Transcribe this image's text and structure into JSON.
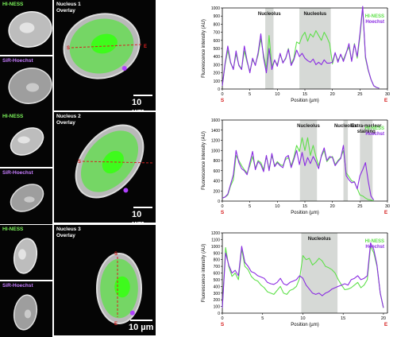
{
  "rows": [
    {
      "label_green": "HI-NESS",
      "label_purple": "SiR-Hoechst",
      "overlay_label": "Nucleus 1\nOverlay",
      "scale_label": "10 µm",
      "line_start": "S",
      "line_end": "E"
    },
    {
      "label_green": "HI-NESS",
      "label_purple": "SiR-Hoechst",
      "overlay_label": "Nucleus 2\nOverlay",
      "scale_label": "10 µm",
      "line_start": "S",
      "line_end": "E"
    },
    {
      "label_green": "HI-NESS",
      "label_purple": "SiR-Hoechst",
      "overlay_label": "Nucleus 3\nOverlay",
      "scale_label": "10 µm",
      "line_start": "S",
      "line_end": "E"
    }
  ],
  "colors": {
    "green": "#5fe04a",
    "purple": "#8a2be2",
    "shade": "#c8ccc8",
    "red": "#d62020"
  },
  "chart_data": [
    {
      "type": "line",
      "xlabel": "Position (µm)",
      "ylabel": "Fluorescence intensity (AU)",
      "xlim": [
        0,
        30
      ],
      "ylim": [
        0,
        1000
      ],
      "xticks": [
        0,
        5,
        10,
        15,
        20,
        25,
        30
      ],
      "yticks": [
        0,
        100,
        200,
        300,
        400,
        500,
        600,
        700,
        800,
        900,
        1000
      ],
      "start_label": "S",
      "end_label": "E",
      "shaded": [
        {
          "from": 7.8,
          "to": 9.3,
          "label": "Nucleolus"
        },
        {
          "from": 14.0,
          "to": 19.7,
          "label": "Nucleolus"
        }
      ],
      "series": [
        {
          "name": "HI-NESS",
          "color": "#5fe04a",
          "x": [
            0,
            0.5,
            1,
            1.5,
            2,
            2.5,
            3,
            3.5,
            4,
            4.5,
            5,
            5.5,
            6,
            6.5,
            7,
            7.5,
            8,
            8.5,
            9,
            9.5,
            10,
            10.5,
            11,
            11.5,
            12,
            12.5,
            13,
            13.5,
            14,
            14.5,
            15,
            15.5,
            16,
            16.5,
            17,
            17.5,
            18,
            18.5,
            19,
            19.5,
            20,
            20.5,
            21,
            21.5,
            22,
            22.5,
            23,
            23.5,
            24,
            24.5,
            25,
            25.5,
            26,
            26.5,
            27,
            27.5,
            28,
            28.5
          ],
          "y": [
            40,
            300,
            480,
            320,
            250,
            430,
            300,
            250,
            470,
            330,
            220,
            360,
            300,
            420,
            620,
            420,
            250,
            660,
            280,
            350,
            300,
            430,
            330,
            370,
            500,
            310,
            380,
            580,
            560,
            650,
            700,
            590,
            680,
            640,
            720,
            660,
            600,
            700,
            640,
            560,
            310,
            440,
            350,
            420,
            360,
            450,
            520,
            350,
            560,
            380,
            640,
            1000,
            380,
            230,
            120,
            40,
            20,
            10
          ]
        },
        {
          "name": "Hoechst",
          "color": "#8a2be2",
          "x": [
            0,
            0.5,
            1,
            1.5,
            2,
            2.5,
            3,
            3.5,
            4,
            4.5,
            5,
            5.5,
            6,
            6.5,
            7,
            7.5,
            8,
            8.5,
            9,
            9.5,
            10,
            10.5,
            11,
            11.5,
            12,
            12.5,
            13,
            13.5,
            14,
            14.5,
            15,
            15.5,
            16,
            16.5,
            17,
            17.5,
            18,
            18.5,
            19,
            19.5,
            20,
            20.5,
            21,
            21.5,
            22,
            22.5,
            23,
            23.5,
            24,
            24.5,
            25,
            25.5,
            26,
            26.5,
            27,
            27.5,
            28,
            28.5
          ],
          "y": [
            40,
            320,
            530,
            330,
            240,
            470,
            290,
            240,
            530,
            350,
            200,
            380,
            290,
            450,
            680,
            380,
            200,
            500,
            240,
            360,
            280,
            440,
            320,
            380,
            490,
            290,
            360,
            480,
            400,
            440,
            380,
            350,
            330,
            370,
            300,
            330,
            300,
            360,
            320,
            320,
            330,
            450,
            330,
            430,
            340,
            440,
            560,
            340,
            550,
            400,
            680,
            1020,
            400,
            240,
            120,
            40,
            20,
            10
          ]
        }
      ]
    },
    {
      "type": "line",
      "xlabel": "Position (µm)",
      "ylabel": "Fluorescence intensity (AU)",
      "xlim": [
        0,
        30
      ],
      "ylim": [
        0,
        1600
      ],
      "xticks": [
        0,
        5,
        10,
        15,
        20,
        25,
        30
      ],
      "yticks": [
        0,
        200,
        400,
        600,
        800,
        1000,
        1200,
        1400,
        1600
      ],
      "start_label": "S",
      "end_label": "E",
      "shaded": [
        {
          "from": 14.1,
          "to": 17.2,
          "label": "Nucleolus"
        },
        {
          "from": 22.0,
          "to": 22.8,
          "label": "Nucleolus"
        },
        {
          "from": 25.0,
          "to": 27.3,
          "label": "Extra-nuclear\nstaining"
        }
      ],
      "series": [
        {
          "name": "HI-NESS",
          "color": "#5fe04a",
          "x": [
            0,
            0.5,
            1,
            1.5,
            2,
            2.5,
            3,
            3.5,
            4,
            4.5,
            5,
            5.5,
            6,
            6.5,
            7,
            7.5,
            8,
            8.5,
            9,
            9.5,
            10,
            10.5,
            11,
            11.5,
            12,
            12.5,
            13,
            13.5,
            14,
            14.5,
            15,
            15.5,
            16,
            16.5,
            17,
            17.5,
            18,
            18.5,
            19,
            19.5,
            20,
            20.5,
            21,
            21.5,
            22,
            22.5,
            23,
            23.5,
            24,
            24.5,
            25,
            25.5,
            26,
            26.5,
            27,
            27.5
          ],
          "y": [
            60,
            80,
            120,
            300,
            420,
            900,
            800,
            700,
            620,
            550,
            700,
            880,
            650,
            800,
            760,
            620,
            880,
            640,
            900,
            700,
            780,
            720,
            700,
            820,
            860,
            700,
            860,
            1100,
            980,
            1250,
            1000,
            1250,
            900,
            1100,
            880,
            700,
            880,
            1000,
            780,
            850,
            880,
            720,
            800,
            860,
            1000,
            560,
            480,
            400,
            380,
            250,
            120,
            100,
            60,
            30,
            20,
            10
          ]
        },
        {
          "name": "Hoechst",
          "color": "#8a2be2",
          "x": [
            0,
            0.5,
            1,
            1.5,
            2,
            2.5,
            3,
            3.5,
            4,
            4.5,
            5,
            5.5,
            6,
            6.5,
            7,
            7.5,
            8,
            8.5,
            9,
            9.5,
            10,
            10.5,
            11,
            11.5,
            12,
            12.5,
            13,
            13.5,
            14,
            14.5,
            15,
            15.5,
            16,
            16.5,
            17,
            17.5,
            18,
            18.5,
            19,
            19.5,
            20,
            20.5,
            21,
            21.5,
            22,
            22.5,
            23,
            23.5,
            24,
            24.5,
            25,
            25.5,
            26,
            26.5,
            27,
            27.5
          ],
          "y": [
            60,
            80,
            140,
            330,
            520,
            1000,
            760,
            640,
            600,
            520,
            760,
            980,
            620,
            780,
            720,
            580,
            900,
            600,
            940,
            680,
            760,
            700,
            660,
            860,
            900,
            660,
            820,
            1000,
            720,
            960,
            700,
            860,
            740,
            880,
            780,
            640,
            900,
            1050,
            800,
            880,
            860,
            700,
            780,
            840,
            1100,
            500,
            420,
            360,
            380,
            240,
            500,
            620,
            760,
            400,
            100,
            20
          ]
        }
      ]
    },
    {
      "type": "line",
      "xlabel": "Position (µm)",
      "ylabel": "Fluorescence intensity (AU)",
      "xlim": [
        0,
        20.5
      ],
      "ylim": [
        0,
        1200
      ],
      "xticks": [
        0,
        5,
        10,
        15,
        20
      ],
      "yticks": [
        0,
        100,
        200,
        300,
        400,
        500,
        600,
        700,
        800,
        900,
        1000,
        1100,
        1200
      ],
      "start_label": "S",
      "end_label": "E",
      "shaded": [
        {
          "from": 9.8,
          "to": 14.3,
          "label": "Nucleolus"
        }
      ],
      "series": [
        {
          "name": "HI-NESS",
          "color": "#5fe04a",
          "x": [
            0,
            0.4,
            0.8,
            1.2,
            1.6,
            2,
            2.4,
            2.8,
            3.2,
            3.6,
            4,
            4.4,
            4.8,
            5.2,
            5.6,
            6,
            6.4,
            6.8,
            7.2,
            7.6,
            8,
            8.4,
            8.8,
            9.2,
            9.6,
            10,
            10.4,
            10.8,
            11.2,
            11.6,
            12,
            12.4,
            12.8,
            13.2,
            13.6,
            14,
            14.4,
            14.8,
            15.2,
            15.6,
            16,
            16.4,
            16.8,
            17.2,
            17.6,
            18,
            18.4,
            18.8,
            19.2,
            19.6,
            20
          ],
          "y": [
            80,
            980,
            700,
            550,
            600,
            500,
            960,
            700,
            650,
            550,
            500,
            480,
            420,
            380,
            320,
            300,
            280,
            340,
            400,
            300,
            280,
            340,
            360,
            400,
            520,
            860,
            800,
            820,
            720,
            760,
            820,
            780,
            700,
            680,
            650,
            600,
            500,
            420,
            350,
            360,
            380,
            420,
            460,
            380,
            420,
            500,
            1000,
            900,
            700,
            300,
            80
          ]
        },
        {
          "name": "Hoechst",
          "color": "#8a2be2",
          "x": [
            0,
            0.4,
            0.8,
            1.2,
            1.6,
            2,
            2.4,
            2.8,
            3.2,
            3.6,
            4,
            4.4,
            4.8,
            5.2,
            5.6,
            6,
            6.4,
            6.8,
            7.2,
            7.6,
            8,
            8.4,
            8.8,
            9.2,
            9.6,
            10,
            10.4,
            10.8,
            11.2,
            11.6,
            12,
            12.4,
            12.8,
            13.2,
            13.6,
            14,
            14.4,
            14.8,
            15.2,
            15.6,
            16,
            16.4,
            16.8,
            17.2,
            17.6,
            18,
            18.4,
            18.8,
            19.2,
            19.6,
            20
          ],
          "y": [
            80,
            900,
            720,
            600,
            640,
            560,
            1000,
            760,
            700,
            620,
            600,
            560,
            540,
            520,
            460,
            440,
            430,
            460,
            520,
            440,
            420,
            460,
            480,
            500,
            560,
            520,
            420,
            360,
            300,
            280,
            300,
            260,
            300,
            320,
            360,
            380,
            400,
            420,
            440,
            420,
            500,
            520,
            560,
            500,
            520,
            560,
            1050,
            950,
            720,
            300,
            80
          ]
        }
      ]
    }
  ]
}
